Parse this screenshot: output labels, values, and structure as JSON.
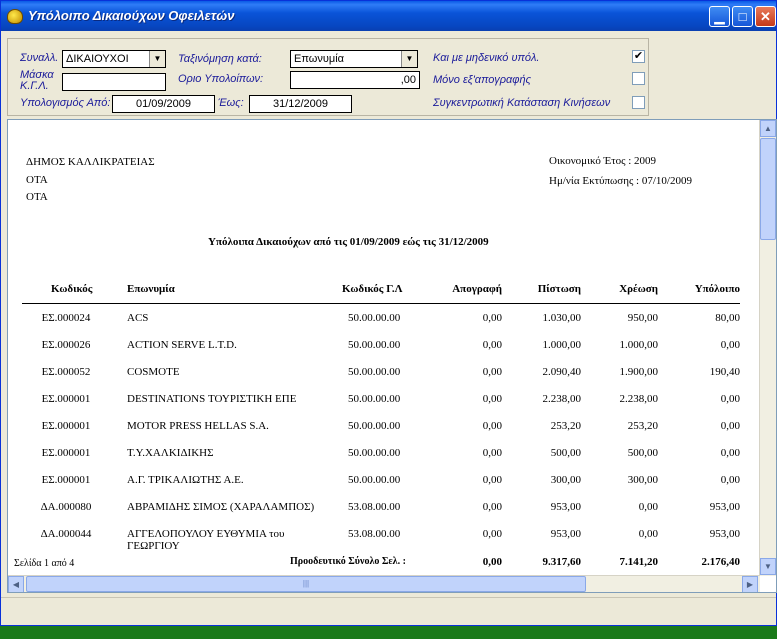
{
  "window": {
    "title": "Υπόλοιπο Δικαιούχων Οφειλετών"
  },
  "filters": {
    "synallag_label": "Συναλλ.",
    "synallag_value": "ΔΙΚΑΙΟΥΧΟΙ",
    "mask_label": "Μάσκα Κ.Γ.Λ.",
    "mask_value": "",
    "ypol_from_label": "Υπολογισμός Από:",
    "ypol_from_value": "01/09/2009",
    "eos_label": "Έως:",
    "eos_value": "31/12/2009",
    "sort_label": "Ταξινόμηση κατά:",
    "sort_value": "Επωνυμία",
    "limit_label": "Οριο Υπολοίπων:",
    "limit_value": ",00",
    "zero_label": "Και με μηδενικό υπόλ.",
    "zero_checked": "✔",
    "apografi_label": "Μόνο εξ'απογραφής",
    "synkentr_label": "Συγκεντρωτική Κατάσταση Κινήσεων"
  },
  "report": {
    "org_line1": "ΔΗΜΟΣ ΚΑΛΛΙΚΡΑΤΕΙΑΣ",
    "org_line2": "ΟΤΑ",
    "org_line3": "ΟΤΑ",
    "fiscal_year": "Οικονομικό Έτος : 2009",
    "print_date": "Ημ/νία Εκτύπωσης : 07/10/2009",
    "title": "Υπόλοιπα Δικαιούχων από τις  01/09/2009 εώς τις  31/12/2009",
    "columns": {
      "code": "Κωδικός",
      "name": "Επωνυμία",
      "gl_code": "Κωδικός Γ.Λ",
      "apografi": "Απογραφή",
      "pistosi": "Πίστωση",
      "xreosi": "Χρέωση",
      "ypoloipo": "Υπόλοιπο"
    },
    "rows": [
      {
        "code": "ΕΣ.000024",
        "name": "ACS",
        "name2": "",
        "gl": "50.00.00.00",
        "apografi": "0,00",
        "pistosi": "1.030,00",
        "xreosi": "950,00",
        "ypoloipo": "80,00"
      },
      {
        "code": "ΕΣ.000026",
        "name": "ACTION SERVE L.T.D.",
        "name2": "",
        "gl": "50.00.00.00",
        "apografi": "0,00",
        "pistosi": "1.000,00",
        "xreosi": "1.000,00",
        "ypoloipo": "0,00"
      },
      {
        "code": "ΕΣ.000052",
        "name": "COSMOTE",
        "name2": "",
        "gl": "50.00.00.00",
        "apografi": "0,00",
        "pistosi": "2.090,40",
        "xreosi": "1.900,00",
        "ypoloipo": "190,40"
      },
      {
        "code": "ΕΣ.000001",
        "name": "DESTINATIONS ΤΟΥΡΙΣΤΙΚΗ ΕΠΕ",
        "name2": "",
        "gl": "50.00.00.00",
        "apografi": "0,00",
        "pistosi": "2.238,00",
        "xreosi": "2.238,00",
        "ypoloipo": "0,00"
      },
      {
        "code": "ΕΣ.000001",
        "name": "MOTOR PRESS HELLAS S.A.",
        "name2": "",
        "gl": "50.00.00.00",
        "apografi": "0,00",
        "pistosi": "253,20",
        "xreosi": "253,20",
        "ypoloipo": "0,00"
      },
      {
        "code": "ΕΣ.000001",
        "name": "Τ.Υ.ΧΑΛΚΙΔΙΚΗΣ",
        "name2": "",
        "gl": "50.00.00.00",
        "apografi": "0,00",
        "pistosi": "500,00",
        "xreosi": "500,00",
        "ypoloipo": "0,00"
      },
      {
        "code": "ΕΣ.000001",
        "name": "Α.Γ. ΤΡΙΚΑΛΙΩΤΗΣ Α.Ε.",
        "name2": "",
        "gl": "50.00.00.00",
        "apografi": "0,00",
        "pistosi": "300,00",
        "xreosi": "300,00",
        "ypoloipo": "0,00"
      },
      {
        "code": "ΔΑ.000080",
        "name": "ΑΒΡΑΜΙΔΗΣ ΣΙΜΟΣ (ΧΑΡΑΛΑΜΠΟΣ)",
        "name2": "",
        "gl": "53.08.00.00",
        "apografi": "0,00",
        "pistosi": "953,00",
        "xreosi": "0,00",
        "ypoloipo": "953,00"
      },
      {
        "code": "ΔΑ.000044",
        "name": "ΑΓΓΕΛΟΠΟΥΛΟΥ ΕΥΘΥΜΙΑ του",
        "name2": "ΓΕΩΡΓΙΟΥ",
        "gl": "53.08.00.00",
        "apografi": "0,00",
        "pistosi": "953,00",
        "xreosi": "0,00",
        "ypoloipo": "953,00"
      }
    ],
    "footer": {
      "page": "Σελίδα  1 από 4",
      "total_label": "Προοδευτικό Σύνολο Σελ. :",
      "apografi": "0,00",
      "pistosi": "9.317,60",
      "xreosi": "7.141,20",
      "ypoloipo": "2.176,40"
    }
  }
}
